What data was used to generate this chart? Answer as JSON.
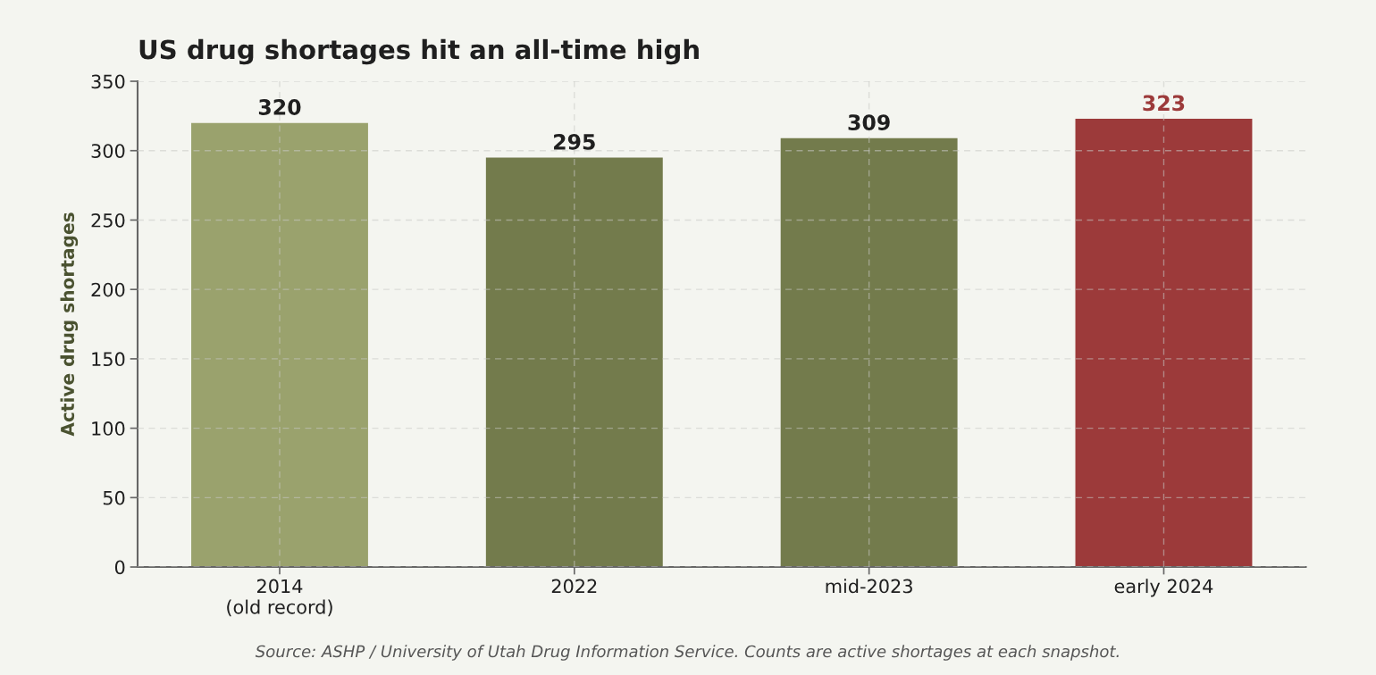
{
  "chart_data": {
    "type": "bar",
    "title": "US drug shortages hit an all-time high",
    "ylabel": "Active drug shortages",
    "categories": [
      "2014\n(old record)",
      "2022",
      "mid-2023",
      "early 2024"
    ],
    "values": [
      320,
      295,
      309,
      323
    ],
    "colors": [
      "#9aa26d",
      "#737b4c",
      "#737b4c",
      "#9c3a3a"
    ],
    "ylim": [
      0,
      350
    ],
    "yticks": [
      0,
      50,
      100,
      150,
      200,
      250,
      300,
      350
    ],
    "grid": true,
    "data_labels": true,
    "annotations": [
      "Source: ASHP / University of Utah Drug Information Service. Counts are active shortages at each snapshot."
    ]
  }
}
